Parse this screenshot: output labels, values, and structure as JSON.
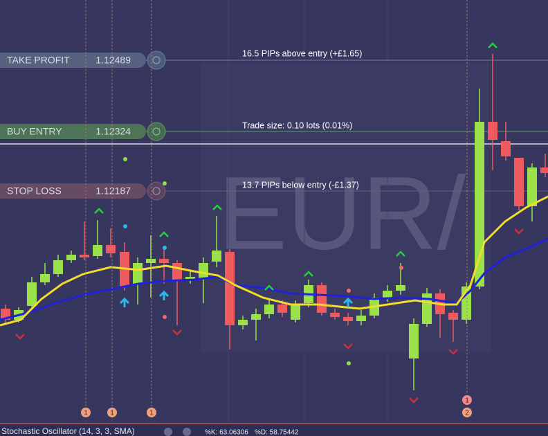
{
  "levels": [
    {
      "label": "TAKE PROFIT",
      "price": "1.12489",
      "note": "16.5 PIPs above entry (+£1.65)"
    },
    {
      "label": "BUY ENTRY",
      "price": "1.12324",
      "note": "Trade size: 0.10 lots (0.01%)"
    },
    {
      "label": "STOP LOSS",
      "price": "1.12187",
      "note": "13.7 PIPs below entry (-£1.37)"
    }
  ],
  "watermark": "EUR/",
  "markers": [
    "1",
    "1",
    "1",
    "1",
    "2"
  ],
  "indicator": {
    "name": "Stochastic Oscillator (14, 3, 3, SMA)",
    "k": "%K: 63.06306",
    "d": "%D: 58.75442"
  }
}
